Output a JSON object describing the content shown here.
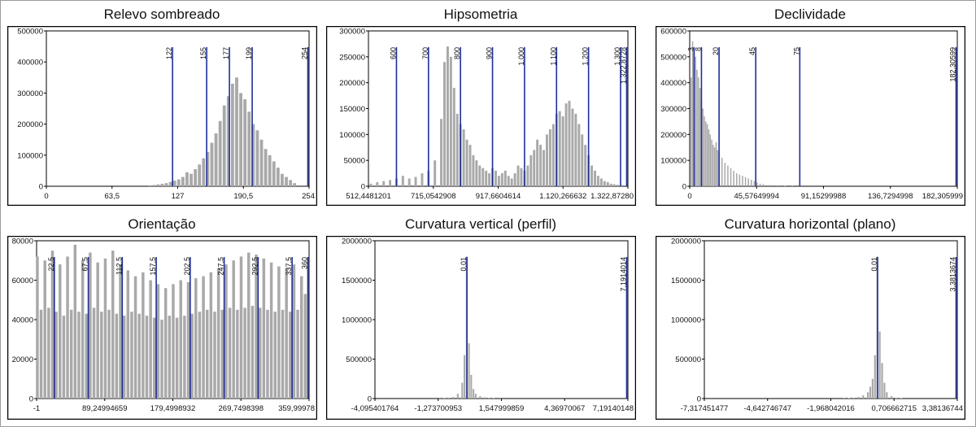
{
  "chart_data": [
    {
      "type": "bar",
      "title": "Relevo sombreado",
      "xlim": [
        0,
        254
      ],
      "ylim": [
        0,
        500000
      ],
      "y_ticks": [
        "500000",
        "400000",
        "300000",
        "200000",
        "100000",
        "0"
      ],
      "x_ticks": [
        "0",
        "63,5",
        "127",
        "190,5",
        "254"
      ],
      "class_breaks": [
        "122",
        "155",
        "177",
        "199",
        "254"
      ],
      "x": [
        100,
        104,
        108,
        112,
        116,
        120,
        124,
        128,
        132,
        136,
        140,
        144,
        148,
        152,
        156,
        160,
        164,
        168,
        172,
        176,
        180,
        184,
        188,
        192,
        196,
        200,
        204,
        208,
        212,
        216,
        220,
        224,
        228,
        232,
        236,
        240
      ],
      "values": [
        3000,
        4000,
        6000,
        8000,
        10000,
        14000,
        18000,
        22000,
        30000,
        45000,
        40000,
        55000,
        70000,
        90000,
        110000,
        140000,
        170000,
        210000,
        260000,
        290000,
        330000,
        350000,
        300000,
        280000,
        240000,
        200000,
        180000,
        150000,
        120000,
        100000,
        80000,
        60000,
        40000,
        30000,
        20000,
        10000
      ]
    },
    {
      "type": "bar",
      "title": "Hipsometria",
      "xlim": [
        512.4481201,
        1322.8728
      ],
      "ylim": [
        0,
        300000
      ],
      "y_ticks": [
        "300000",
        "250000",
        "200000",
        "150000",
        "100000",
        "50000",
        "0"
      ],
      "x_ticks": [
        "512,4481201",
        "715,0542908",
        "917,6604614",
        "1.120,266632",
        "1.322,87280"
      ],
      "class_breaks": [
        "600",
        "700",
        "800",
        "900",
        "1.000",
        "1.100",
        "1.200",
        "1.300",
        "1.322,8728"
      ],
      "x": [
        520,
        540,
        560,
        580,
        600,
        620,
        640,
        660,
        680,
        700,
        720,
        740,
        750,
        760,
        770,
        780,
        790,
        800,
        810,
        820,
        830,
        840,
        850,
        860,
        870,
        880,
        890,
        900,
        910,
        920,
        930,
        940,
        950,
        960,
        970,
        980,
        990,
        1000,
        1010,
        1020,
        1030,
        1040,
        1050,
        1060,
        1070,
        1080,
        1090,
        1100,
        1110,
        1120,
        1130,
        1140,
        1150,
        1160,
        1170,
        1180,
        1190,
        1200,
        1210,
        1220,
        1230,
        1240,
        1250,
        1260,
        1270,
        1280,
        1290,
        1300
      ],
      "values": [
        5000,
        8000,
        10000,
        12000,
        15000,
        20000,
        15000,
        18000,
        25000,
        30000,
        50000,
        130000,
        240000,
        270000,
        250000,
        190000,
        140000,
        120000,
        110000,
        90000,
        80000,
        60000,
        50000,
        40000,
        35000,
        30000,
        25000,
        35000,
        30000,
        20000,
        25000,
        30000,
        20000,
        15000,
        25000,
        40000,
        35000,
        30000,
        40000,
        60000,
        70000,
        90000,
        80000,
        70000,
        100000,
        110000,
        120000,
        140000,
        145000,
        135000,
        160000,
        165000,
        150000,
        140000,
        120000,
        100000,
        80000,
        60000,
        40000,
        30000,
        20000,
        15000,
        10000,
        8000,
        5000,
        4000,
        3000,
        2000
      ]
    },
    {
      "type": "bar",
      "title": "Declividade",
      "xlim": [
        0,
        182.305999
      ],
      "ylim": [
        0,
        600000
      ],
      "y_ticks": [
        "600000",
        "500000",
        "400000",
        "300000",
        "200000",
        "100000",
        "0"
      ],
      "x_ticks": [
        "0",
        "45,57649994",
        "91,15299988",
        "136,7294998",
        "182,305999"
      ],
      "class_breaks": [
        "3",
        "8",
        "20",
        "45",
        "75",
        "182,30599"
      ],
      "x": [
        1,
        2,
        3,
        4,
        5,
        6,
        7,
        8,
        9,
        10,
        11,
        12,
        13,
        14,
        15,
        16,
        17,
        18,
        19,
        20,
        22,
        24,
        26,
        28,
        30,
        32,
        34,
        36,
        38,
        40,
        42,
        44,
        46,
        48,
        50,
        55,
        60,
        65,
        70,
        75
      ],
      "values": [
        420000,
        560000,
        520000,
        500000,
        450000,
        420000,
        380000,
        330000,
        300000,
        270000,
        250000,
        240000,
        220000,
        200000,
        180000,
        160000,
        150000,
        170000,
        140000,
        130000,
        110000,
        90000,
        80000,
        70000,
        60000,
        50000,
        45000,
        40000,
        35000,
        30000,
        25000,
        20000,
        15000,
        10000,
        8000,
        5000,
        3000,
        2000,
        1000,
        500
      ]
    },
    {
      "type": "bar",
      "title": "Orientação",
      "xlim": [
        -1,
        359.99978
      ],
      "ylim": [
        0,
        80000
      ],
      "y_ticks": [
        "80000",
        "60000",
        "40000",
        "20000",
        "0"
      ],
      "x_ticks": [
        "-1",
        "89,24994659",
        "179,4998932",
        "269,7498398",
        "359,99978"
      ],
      "class_breaks": [
        "22,5",
        "67,5",
        "112,5",
        "157,5",
        "202,5",
        "247,5",
        "292,5",
        "337,5",
        "360"
      ],
      "x": [
        0,
        5,
        10,
        15,
        20,
        25,
        30,
        35,
        40,
        45,
        50,
        55,
        60,
        65,
        70,
        75,
        80,
        85,
        90,
        95,
        100,
        105,
        110,
        115,
        120,
        125,
        130,
        135,
        140,
        145,
        150,
        155,
        160,
        165,
        170,
        175,
        180,
        185,
        190,
        195,
        200,
        205,
        210,
        215,
        220,
        225,
        230,
        235,
        240,
        245,
        250,
        255,
        260,
        265,
        270,
        275,
        280,
        285,
        290,
        295,
        300,
        305,
        310,
        315,
        320,
        325,
        330,
        335,
        340,
        345,
        350,
        355
      ],
      "values": [
        72000,
        45000,
        70000,
        46000,
        75000,
        44000,
        68000,
        42000,
        72000,
        45000,
        78000,
        44000,
        70000,
        43000,
        74000,
        46000,
        69000,
        44000,
        71000,
        45000,
        75000,
        43000,
        68000,
        42000,
        65000,
        44000,
        62000,
        43000,
        64000,
        42000,
        60000,
        41000,
        58000,
        40000,
        56000,
        42000,
        58000,
        41000,
        60000,
        42000,
        59000,
        43000,
        61000,
        44000,
        62000,
        45000,
        64000,
        44000,
        66000,
        45000,
        68000,
        46000,
        70000,
        45000,
        72000,
        46000,
        74000,
        47000,
        73000,
        46000,
        71000,
        45000,
        69000,
        44000,
        67000,
        45000,
        66000,
        44000,
        68000,
        45000,
        62000,
        53000
      ]
    },
    {
      "type": "bar",
      "title": "Curvatura vertical (perfil)",
      "xlim": [
        -4.095401764,
        7.19140148
      ],
      "ylim": [
        0,
        2000000
      ],
      "y_ticks": [
        "2000000",
        "1500000",
        "1000000",
        "500000",
        "0"
      ],
      "x_ticks": [
        "-4,095401764",
        "-1,273700953",
        "1,547999859",
        "4,36970067",
        "7,19140148"
      ],
      "class_breaks": [
        "0,01",
        "7,1914014"
      ],
      "x": [
        -1.2,
        -1.0,
        -0.8,
        -0.6,
        -0.4,
        -0.2,
        -0.1,
        0.0,
        0.1,
        0.2,
        0.3,
        0.4,
        0.6,
        0.8,
        1.0,
        1.2,
        1.5
      ],
      "values": [
        2000,
        5000,
        10000,
        20000,
        60000,
        200000,
        550000,
        1800000,
        700000,
        300000,
        120000,
        60000,
        30000,
        15000,
        8000,
        4000,
        2000
      ]
    },
    {
      "type": "bar",
      "title": "Curvatura horizontal (plano)",
      "xlim": [
        -7.317451477,
        3.38136744
      ],
      "ylim": [
        0,
        2000000
      ],
      "y_ticks": [
        "2000000",
        "1500000",
        "1000000",
        "500000",
        "0"
      ],
      "x_ticks": [
        "-7,317451477",
        "-4,642746747",
        "-1,968042016",
        "0,706662715",
        "3,38136744"
      ],
      "class_breaks": [
        "0,01",
        "3,3813674"
      ],
      "x": [
        -1.4,
        -1.2,
        -1.0,
        -0.8,
        -0.6,
        -0.4,
        -0.3,
        -0.2,
        -0.1,
        0.0,
        0.1,
        0.2,
        0.3,
        0.4,
        0.6,
        0.8,
        1.0
      ],
      "values": [
        3000,
        6000,
        10000,
        20000,
        40000,
        80000,
        150000,
        250000,
        550000,
        1800000,
        850000,
        450000,
        200000,
        80000,
        30000,
        10000,
        5000
      ]
    }
  ],
  "style": {
    "bar_color": "#a9a9a9",
    "break_line_color": "#1f2f9a",
    "frame_color": "#000000",
    "background": "#ffffff"
  }
}
